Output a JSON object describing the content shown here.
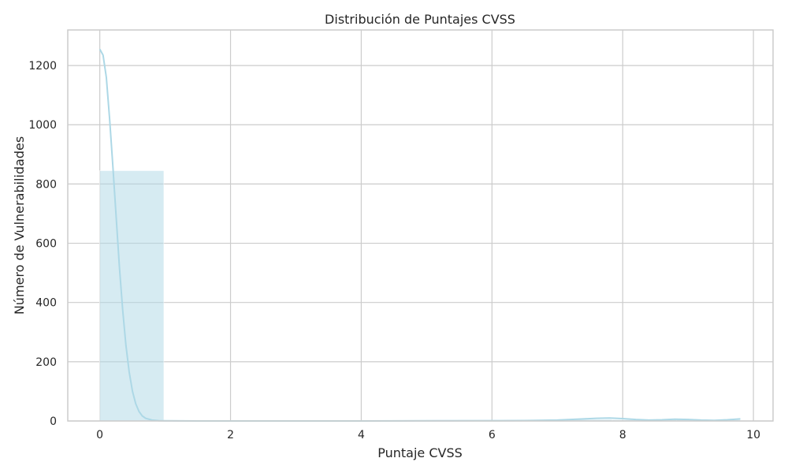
{
  "chart_data": {
    "type": "bar",
    "subtype": "histogram-with-kde",
    "title": "Distribución de Puntajes CVSS",
    "xlabel": "Puntaje CVSS",
    "ylabel": "Número de Vulnerabilidades",
    "xlim": [
      -0.49,
      10.3
    ],
    "ylim": [
      0,
      1320
    ],
    "grid": true,
    "legend": "none",
    "xticks": [
      0,
      2,
      4,
      6,
      8,
      10
    ],
    "yticks": [
      0,
      200,
      400,
      600,
      800,
      1000,
      1200
    ],
    "colors": {
      "bar": "#add8e6",
      "kde": "#add8e6",
      "grid": "#cccccc",
      "frame": "#cccccc"
    },
    "bins": [
      {
        "x0": 0.0,
        "x1": 0.98,
        "count": 845
      },
      {
        "x0": 0.98,
        "x1": 1.96,
        "count": 0
      },
      {
        "x0": 1.96,
        "x1": 2.94,
        "count": 0
      },
      {
        "x0": 2.94,
        "x1": 3.92,
        "count": 0
      },
      {
        "x0": 3.92,
        "x1": 4.9,
        "count": 0
      },
      {
        "x0": 4.9,
        "x1": 5.88,
        "count": 1
      },
      {
        "x0": 5.88,
        "x1": 6.86,
        "count": 1
      },
      {
        "x0": 6.86,
        "x1": 7.84,
        "count": 5
      },
      {
        "x0": 7.84,
        "x1": 8.82,
        "count": 4
      },
      {
        "x0": 8.82,
        "x1": 9.8,
        "count": 4
      }
    ],
    "kde": {
      "x": [
        0,
        0.05,
        0.1,
        0.15,
        0.2,
        0.25,
        0.3,
        0.35,
        0.4,
        0.45,
        0.5,
        0.55,
        0.6,
        0.65,
        0.7,
        0.8,
        0.9,
        1.0,
        1.5,
        2.0,
        3.0,
        4.0,
        5.0,
        6.0,
        6.5,
        7.0,
        7.3,
        7.6,
        7.8,
        8.0,
        8.2,
        8.4,
        8.6,
        8.8,
        9.0,
        9.2,
        9.4,
        9.6,
        9.8
      ],
      "y": [
        1255,
        1235,
        1160,
        1020,
        860,
        690,
        520,
        375,
        255,
        165,
        100,
        58,
        32,
        17,
        9,
        3,
        1,
        0.5,
        0,
        0,
        0,
        0,
        0.5,
        1,
        1.5,
        3,
        6,
        9,
        10,
        8,
        5,
        3,
        4,
        6,
        5,
        3,
        2,
        4,
        7
      ]
    }
  }
}
